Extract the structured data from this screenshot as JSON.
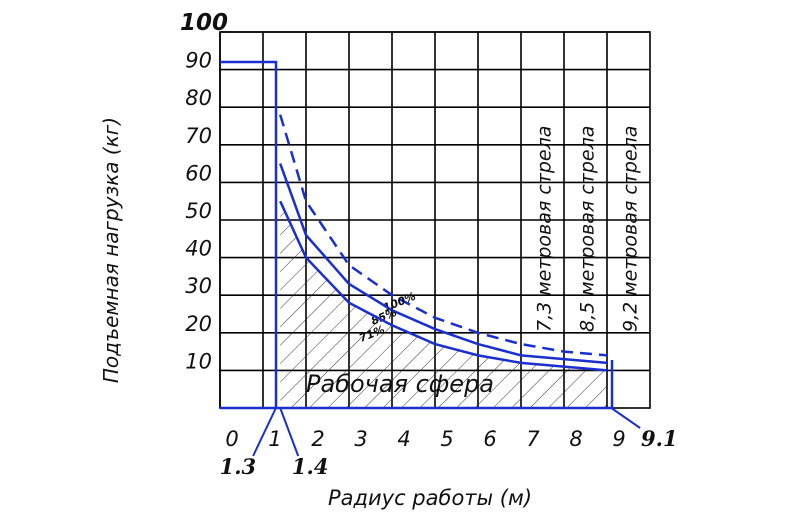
{
  "chart_data": {
    "type": "line",
    "x_label": "Радиус работы (м)",
    "y_label": "Подъемная нагрузка (кг)",
    "x": [
      1.4,
      2,
      3,
      4,
      5,
      6,
      7,
      8,
      9
    ],
    "series": [
      {
        "name": "100%",
        "color": "#1a2fd0",
        "dashed": true,
        "values": [
          78,
          55,
          38,
          30,
          24,
          20,
          17,
          15,
          14
        ]
      },
      {
        "name": "85%",
        "color": "#1a2fd0",
        "dashed": false,
        "values": [
          65,
          46,
          33,
          26,
          21,
          17,
          14,
          13,
          12
        ]
      },
      {
        "name": "71%",
        "color": "#1a2fd0",
        "dashed": false,
        "values": [
          55,
          40,
          28,
          22,
          17,
          14,
          12,
          11,
          10
        ]
      }
    ],
    "xlim": [
      0,
      10
    ],
    "ylim": [
      0,
      100
    ],
    "xticks": [
      0,
      1,
      2,
      3,
      4,
      5,
      6,
      7,
      8,
      9
    ],
    "yticks": [
      10,
      20,
      30,
      40,
      50,
      60,
      70,
      80,
      90,
      100
    ],
    "special_xticks": [
      1.3,
      1.4,
      9.1
    ],
    "grid": true,
    "area_label": "Рабочая сфера",
    "boom_labels": [
      "7,3 метровая стрела",
      "8,5 метровая стрела",
      "9,2 метровая стрела"
    ]
  }
}
